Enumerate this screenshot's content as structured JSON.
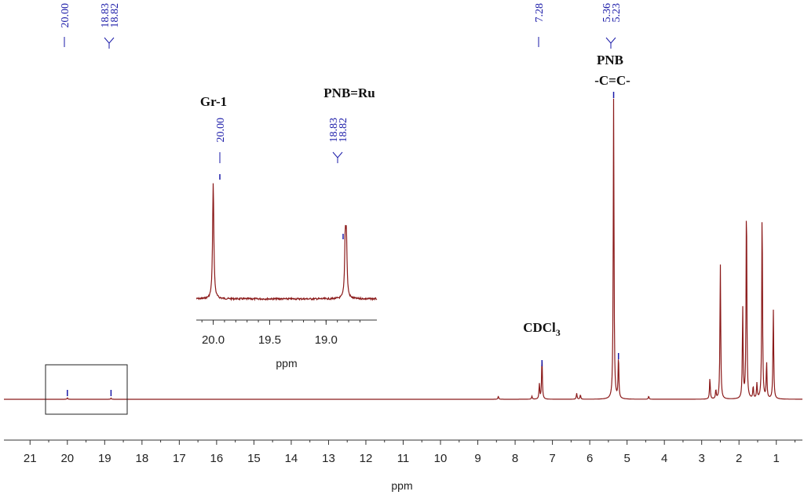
{
  "chart_data": [
    {
      "type": "line",
      "role": "main-spectrum",
      "xlabel": "ppm",
      "ylabel": "",
      "xlim": [
        21.7,
        0.3
      ],
      "x_reversed": true,
      "tick_labels": [
        "21",
        "20",
        "19",
        "18",
        "17",
        "16",
        "15",
        "14",
        "13",
        "12",
        "11",
        "10",
        "9",
        "8",
        "7",
        "6",
        "5",
        "4",
        "3",
        "2",
        "1"
      ],
      "peak_labels": [
        "20.00",
        "18.83",
        "18.82",
        "7.28",
        "5.36",
        "5.23"
      ],
      "series": [
        {
          "color": "#8b1a1a",
          "peaks": [
            {
              "x": 20.0,
              "height": 0.005
            },
            {
              "x": 18.83,
              "height": 0.004
            },
            {
              "x": 8.45,
              "height": 0.01
            },
            {
              "x": 7.55,
              "height": 0.01
            },
            {
              "x": 7.35,
              "height": 0.05
            },
            {
              "x": 7.28,
              "height": 0.14
            },
            {
              "x": 6.35,
              "height": 0.02
            },
            {
              "x": 6.25,
              "height": 0.015
            },
            {
              "x": 5.36,
              "height": 1.0
            },
            {
              "x": 5.23,
              "height": 0.14
            },
            {
              "x": 4.42,
              "height": 0.01
            },
            {
              "x": 2.78,
              "height": 0.07
            },
            {
              "x": 2.62,
              "height": 0.03
            },
            {
              "x": 2.5,
              "height": 0.45
            },
            {
              "x": 1.9,
              "height": 0.3
            },
            {
              "x": 1.8,
              "height": 0.67
            },
            {
              "x": 1.62,
              "height": 0.04
            },
            {
              "x": 1.52,
              "height": 0.05
            },
            {
              "x": 1.38,
              "height": 0.64
            },
            {
              "x": 1.26,
              "height": 0.12
            },
            {
              "x": 1.08,
              "height": 0.3
            }
          ]
        }
      ],
      "annotations": {
        "pnb_title": "PNB",
        "pnb_sub": "-C=C-",
        "solvent_main": "CDCl",
        "solvent_sub": "3"
      }
    },
    {
      "type": "line",
      "role": "inset",
      "xlabel": "ppm",
      "xlim": [
        20.15,
        18.55
      ],
      "x_reversed": true,
      "tick_labels": [
        "20.0",
        "19.5",
        "19.0"
      ],
      "peak_labels": [
        "20.00",
        "18.83",
        "18.82"
      ],
      "annotations": {
        "gr1": "Gr-1",
        "pnb_ru": "PNB=Ru"
      },
      "series": [
        {
          "color": "#8b1a1a",
          "peaks": [
            {
              "x": 20.0,
              "height": 1.0
            },
            {
              "x": 18.83,
              "height": 0.49
            },
            {
              "x": 18.82,
              "height": 0.47
            }
          ]
        }
      ]
    }
  ]
}
